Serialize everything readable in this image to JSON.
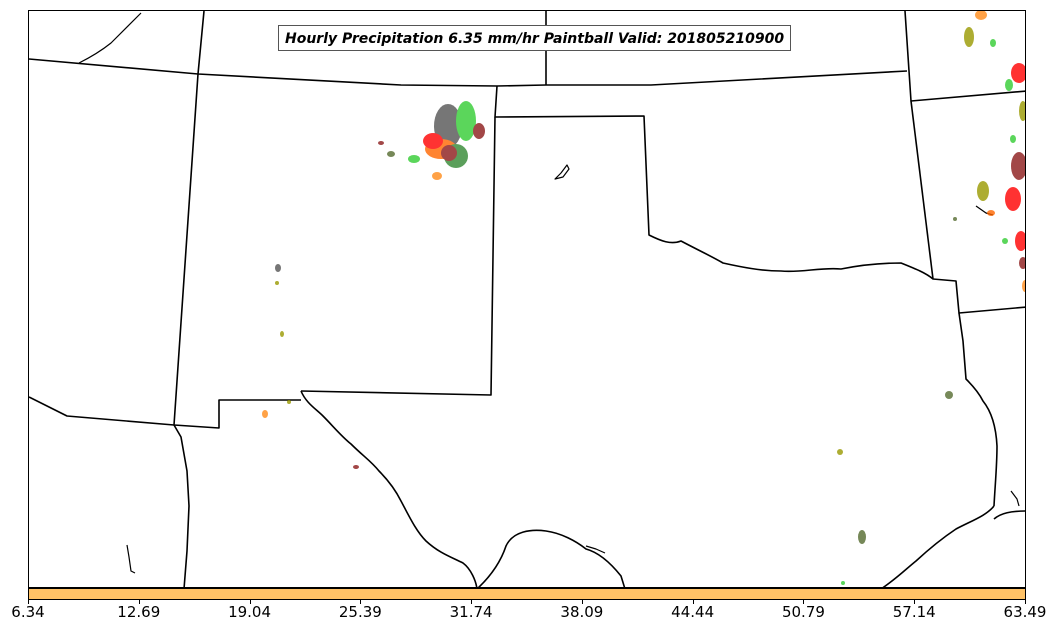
{
  "title": "Hourly Precipitation 6.35 mm/hr Paintball Valid: 201805210900",
  "colorbar": {
    "color": "#ffc266",
    "ticks": [
      "6.34",
      "12.69",
      "19.04",
      "25.39",
      "31.74",
      "38.09",
      "44.44",
      "50.79",
      "57.14",
      "63.49"
    ]
  },
  "member_colors": [
    "#555555",
    "#33cc33",
    "#ff6600",
    "#ff0000",
    "#8b1a1a",
    "#999900",
    "#556b2f",
    "#ff8c1a"
  ]
}
